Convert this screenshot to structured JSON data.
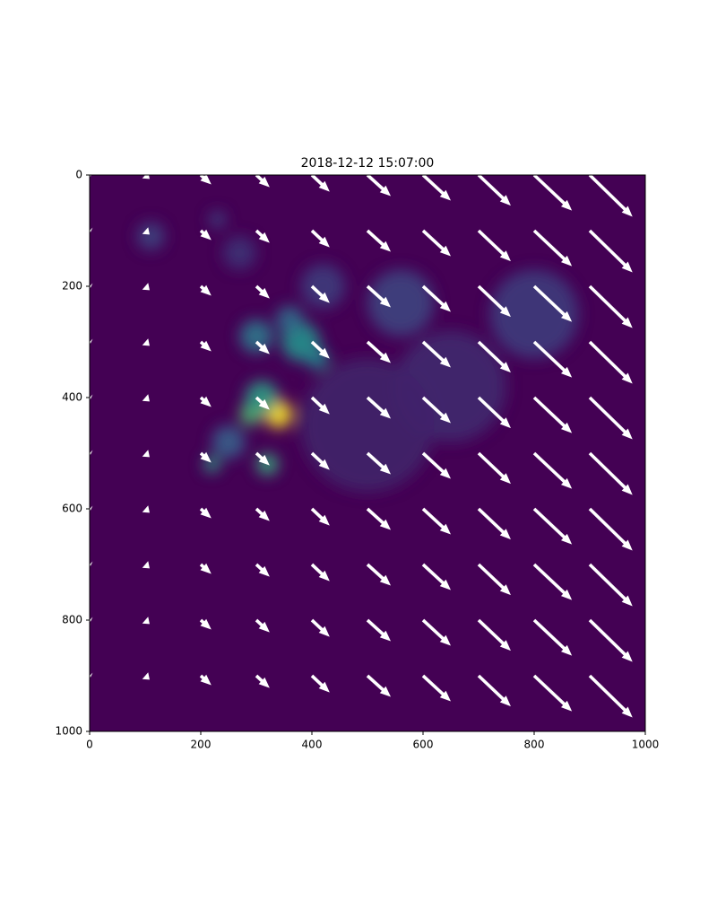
{
  "chart_data": {
    "type": "heatmap-quiver",
    "title": "2018-12-12 15:07:00",
    "xlim": [
      0,
      1000
    ],
    "ylim": [
      1000,
      0
    ],
    "xticks": [
      0,
      200,
      400,
      600,
      800,
      1000
    ],
    "yticks": [
      0,
      200,
      400,
      600,
      800,
      1000
    ],
    "background": "#440154",
    "arrow_color": "#ffffff",
    "blobs": {
      "x": [
        340,
        290,
        310,
        320,
        220,
        300,
        380,
        410,
        360,
        560,
        800,
        650,
        250,
        110,
        230,
        420,
        500,
        270
      ],
      "y": [
        430,
        430,
        400,
        520,
        520,
        290,
        300,
        330,
        260,
        230,
        250,
        380,
        480,
        110,
        80,
        200,
        450,
        140
      ],
      "r": [
        25,
        20,
        30,
        20,
        15,
        30,
        35,
        20,
        25,
        60,
        80,
        100,
        30,
        25,
        15,
        40,
        120,
        30
      ],
      "intensity": [
        1.0,
        0.7,
        0.55,
        0.6,
        0.55,
        0.4,
        0.5,
        0.45,
        0.35,
        0.2,
        0.18,
        0.12,
        0.3,
        0.2,
        0.2,
        0.18,
        0.1,
        0.15
      ]
    },
    "quiver": {
      "x": [
        0,
        100,
        200,
        300,
        400,
        500,
        600,
        700,
        800,
        900
      ],
      "y": [
        0,
        100,
        200,
        300,
        400,
        500,
        600,
        700,
        800,
        900
      ],
      "u": [
        2,
        8,
        19,
        24,
        32,
        42,
        50,
        58,
        68,
        77
      ],
      "v": [
        2,
        7,
        17,
        22,
        30,
        38,
        46,
        55,
        64,
        75
      ]
    }
  }
}
